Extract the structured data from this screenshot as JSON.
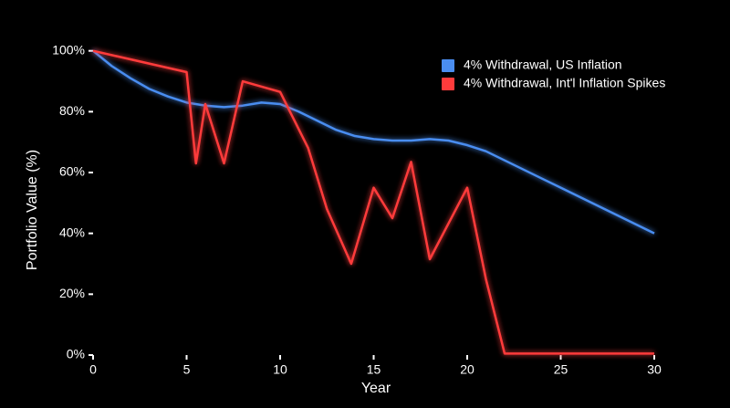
{
  "chart_data": {
    "type": "line",
    "x_label": "Year",
    "y_label": "Portfolio Value (%)",
    "xlim": [
      0,
      31.7
    ],
    "ylim": [
      0,
      111
    ],
    "xticks": [
      0,
      5,
      10,
      15,
      20,
      25,
      30
    ],
    "yticks": [
      {
        "value": 0,
        "label": "0%"
      },
      {
        "value": 20,
        "label": "20%"
      },
      {
        "value": 40,
        "label": "40%"
      },
      {
        "value": 60,
        "label": "60%"
      },
      {
        "value": 80,
        "label": "80%"
      },
      {
        "value": 100,
        "label": "100%"
      }
    ],
    "legend": "upper right",
    "series": [
      {
        "name": "4% Withdrawal, US Inflation",
        "color": "#4a8df0",
        "x": [
          0,
          1,
          2,
          3,
          4,
          5,
          6,
          7,
          8,
          9,
          10,
          11,
          12,
          13,
          14,
          15,
          16,
          17,
          18,
          19,
          20,
          21,
          22,
          23,
          24,
          25,
          26,
          27,
          28,
          29,
          30
        ],
        "values": [
          100,
          95,
          91,
          87.5,
          85,
          83,
          82,
          81.5,
          82,
          83,
          82.5,
          80,
          77,
          74,
          72,
          71,
          70.5,
          70.5,
          71,
          70.5,
          69,
          67,
          64,
          61,
          58,
          55,
          52,
          49,
          46,
          43,
          40
        ]
      },
      {
        "name": "4% Withdrawal, Int'l Inflation Spikes",
        "color": "#ff3b3b",
        "x": [
          0,
          5,
          5.5,
          6,
          7,
          8,
          10,
          11.5,
          12.5,
          13.8,
          15,
          16,
          17,
          18,
          20,
          21,
          22,
          30
        ],
        "values": [
          100,
          93,
          63,
          82.5,
          63,
          90,
          86.5,
          68,
          48,
          30,
          55,
          45,
          63.5,
          31.5,
          55,
          25,
          0.5,
          0.5
        ]
      }
    ]
  }
}
